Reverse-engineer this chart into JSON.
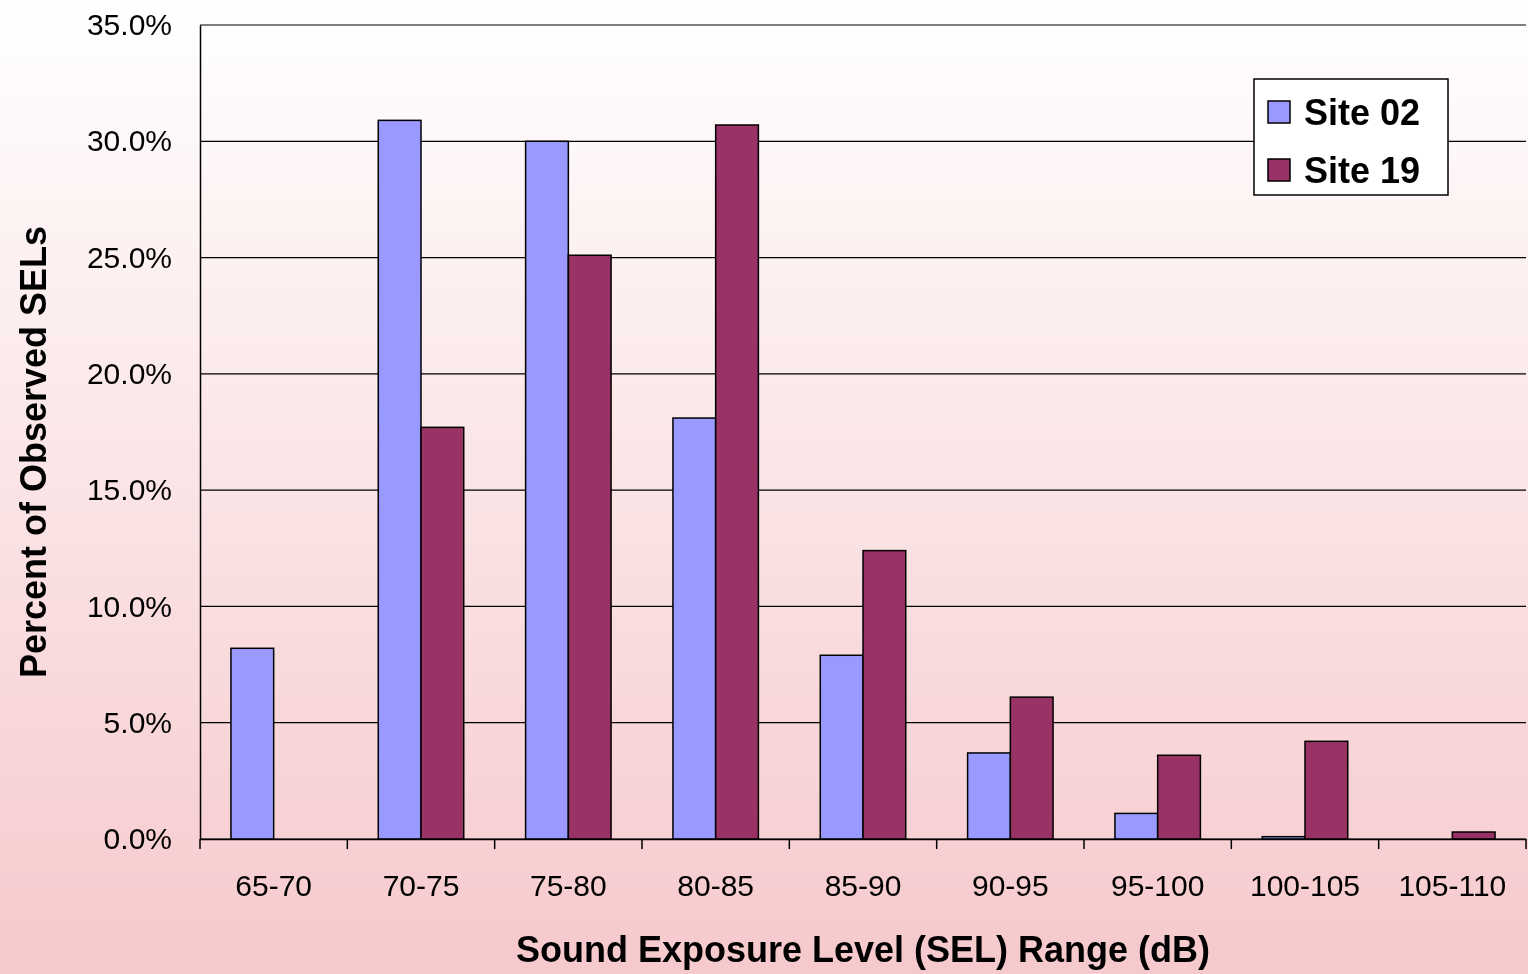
{
  "chart_data": {
    "type": "bar",
    "xlabel": "Sound Exposure Level (SEL) Range (dB)",
    "ylabel": "Percent of Observed SELs",
    "categories": [
      "65-70",
      "70-75",
      "75-80",
      "80-85",
      "85-90",
      "90-95",
      "95-100",
      "100-105",
      "105-110"
    ],
    "series": [
      {
        "name": "Site 02",
        "color": "#9999ff",
        "values": [
          8.2,
          30.9,
          30.0,
          18.1,
          7.9,
          3.7,
          1.1,
          0.1,
          0
        ]
      },
      {
        "name": "Site 19",
        "color": "#993366",
        "values": [
          0,
          17.7,
          25.1,
          30.7,
          12.4,
          6.1,
          3.6,
          4.2,
          0.3
        ]
      }
    ],
    "ylim": [
      0,
      35
    ],
    "yticks": [
      {
        "value": 0,
        "label": "0.0%"
      },
      {
        "value": 5,
        "label": "5.0%"
      },
      {
        "value": 10,
        "label": "10.0%"
      },
      {
        "value": 15,
        "label": "15.0%"
      },
      {
        "value": 20,
        "label": "20.0%"
      },
      {
        "value": 25,
        "label": "25.0%"
      },
      {
        "value": 30,
        "label": "30.0%"
      },
      {
        "value": 35,
        "label": "35.0%"
      }
    ],
    "grid": "y",
    "legend": "top right"
  }
}
